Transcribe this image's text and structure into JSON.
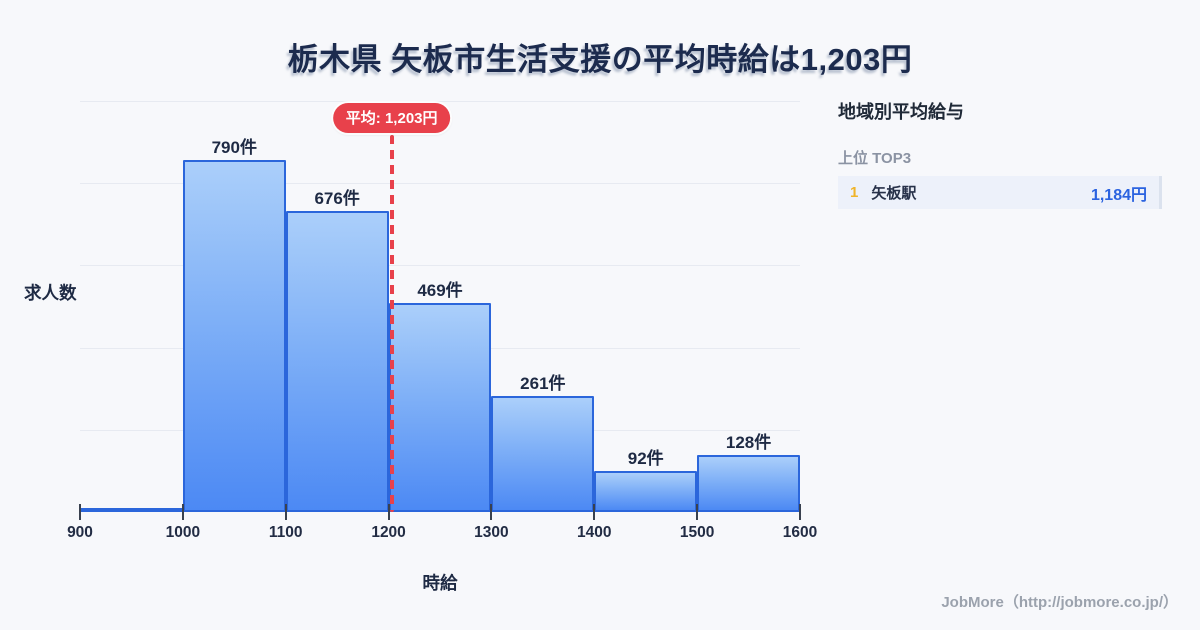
{
  "title": "栃木県 矢板市生活支援の平均時給は1,203円",
  "chart_data": {
    "type": "bar",
    "subtype": "histogram",
    "xlabel": "時給",
    "ylabel": "求人数",
    "bin_edges": [
      900,
      1000,
      1100,
      1200,
      1300,
      1400,
      1500,
      1600
    ],
    "values": [
      0,
      790,
      676,
      469,
      261,
      92,
      128
    ],
    "bar_labels": [
      "",
      "790件",
      "676件",
      "469件",
      "261件",
      "92件",
      "128件"
    ],
    "x_tick_labels": [
      "900",
      "1000",
      "1100",
      "1200",
      "1300",
      "1400",
      "1500",
      "1600"
    ],
    "xlim": [
      900,
      1600
    ],
    "ylim": [
      0,
      923
    ],
    "grid": "horizontal",
    "mean_line": {
      "value": 1203,
      "label": "平均: 1,203円"
    },
    "colors": {
      "bar_gradient_top": "#abcffa",
      "bar_gradient_bottom": "#4c89f4",
      "bar_border": "#2b66db",
      "mean_red": "#e8414b",
      "grid": "#e7eaf1",
      "text_dark": "#1e2a44"
    }
  },
  "side_panel": {
    "heading": "地域別平均給与",
    "subheading": "上位 TOP3",
    "rows": [
      {
        "rank": "1",
        "name": "矢板駅",
        "value": "1,184円"
      }
    ]
  },
  "footer": {
    "credit": "JobMore（http://jobmore.co.jp/）"
  }
}
